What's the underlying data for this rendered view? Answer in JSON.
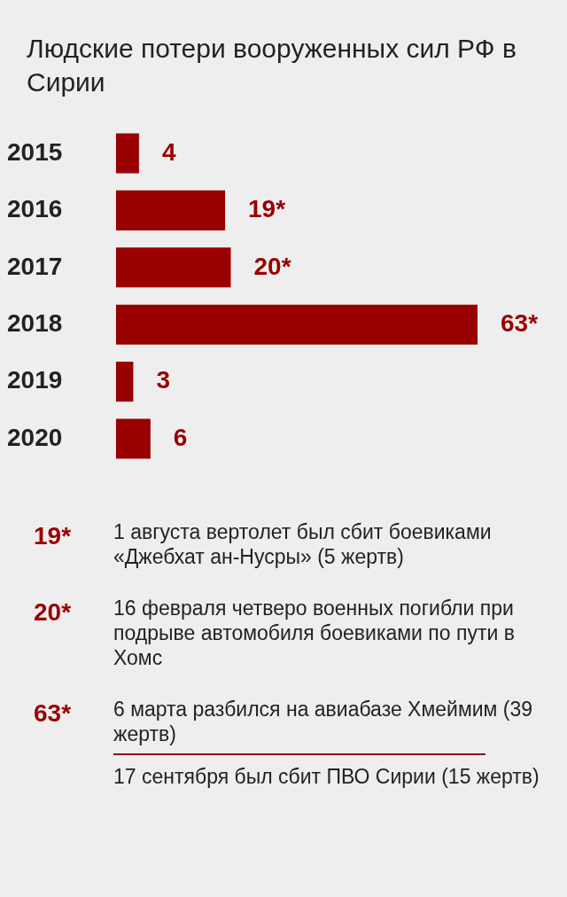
{
  "chart_data": {
    "type": "bar",
    "orientation": "horizontal",
    "title": "Людские потери вооруженных сил РФ в Сирии",
    "categories": [
      "2015",
      "2016",
      "2017",
      "2018",
      "2019",
      "2020"
    ],
    "values": [
      4,
      19,
      20,
      63,
      3,
      6
    ],
    "value_labels": [
      "4",
      "19*",
      "20*",
      "63*",
      "3",
      "6"
    ],
    "color": "#990000",
    "legend": false,
    "annotations": [
      "19*",
      "1 августа вертолет был сбит боевиками «Джебхат ан-Нусры» (5 жертв)",
      "20*",
      "16 февраля четверо военных погибли при подрыве автомобиля боевиками по пути в Хомс",
      "63*",
      "6 марта разбился на авиабазе Хмеймим (39 жертв)",
      "17 сентября был сбит ПВО Сирии (15 жертв)"
    ]
  }
}
